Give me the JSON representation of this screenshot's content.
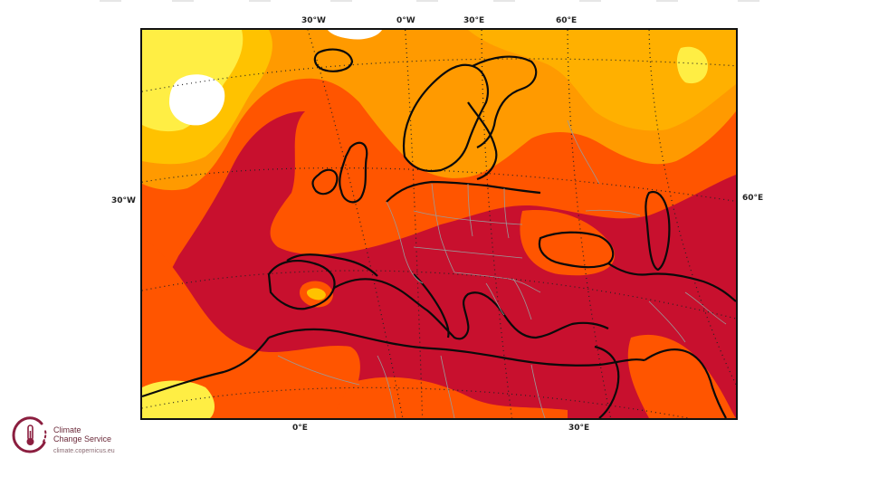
{
  "map": {
    "projection": "conic",
    "region": "Europe",
    "graticule": "dotted",
    "color_scale": {
      "palette": [
        "#ffffff",
        "#ffee44",
        "#ffc200",
        "#ff9a00",
        "#ff5500",
        "#c8102e"
      ],
      "dominant": "#c8102e"
    },
    "labels": {
      "top": [
        "30°W",
        "0°W",
        "30°E",
        "60°E"
      ],
      "left": "30°W",
      "right": "60°E",
      "bottom": [
        "0°E",
        "30°E"
      ]
    }
  },
  "branding": {
    "title_line1": "Climate",
    "title_line2": "Change Service",
    "url": "climate.copernicus.eu",
    "logo_icon": "thermometer-in-circle-icon",
    "logo_color": "#8b1e3f"
  }
}
